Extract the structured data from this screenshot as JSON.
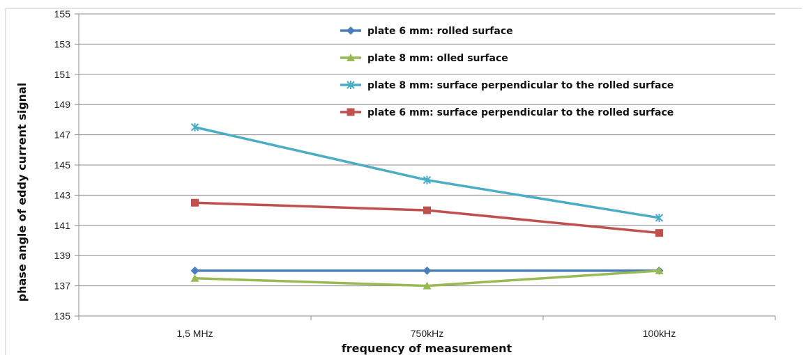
{
  "chart_data": {
    "type": "line",
    "title": "",
    "xlabel": "frequency of measurement",
    "ylabel": "phase angle of eddy current signal",
    "categories": [
      "1,5 MHz",
      "750kHz",
      "100kHz"
    ],
    "ylim": [
      135,
      155
    ],
    "yticks": [
      135,
      137,
      139,
      141,
      143,
      145,
      147,
      149,
      151,
      153,
      155
    ],
    "grid": true,
    "legend_position": "top-center",
    "series": [
      {
        "name": "plate 6 mm: rolled surface",
        "values": [
          138,
          138,
          138
        ],
        "color": "#4a7ebb",
        "marker": "diamond"
      },
      {
        "name": "plate 8 mm: olled surface",
        "values": [
          137.5,
          137,
          138
        ],
        "color": "#98b954",
        "marker": "triangle"
      },
      {
        "name": "plate 8 mm: surface perpendicular to the rolled surface",
        "values": [
          147.5,
          144,
          141.5
        ],
        "color": "#4bacc6",
        "marker": "x"
      },
      {
        "name": "plate 6 mm: surface perpendicular to the rolled surface",
        "values": [
          142.5,
          142,
          140.5
        ],
        "color": "#c0504d",
        "marker": "square"
      }
    ]
  }
}
